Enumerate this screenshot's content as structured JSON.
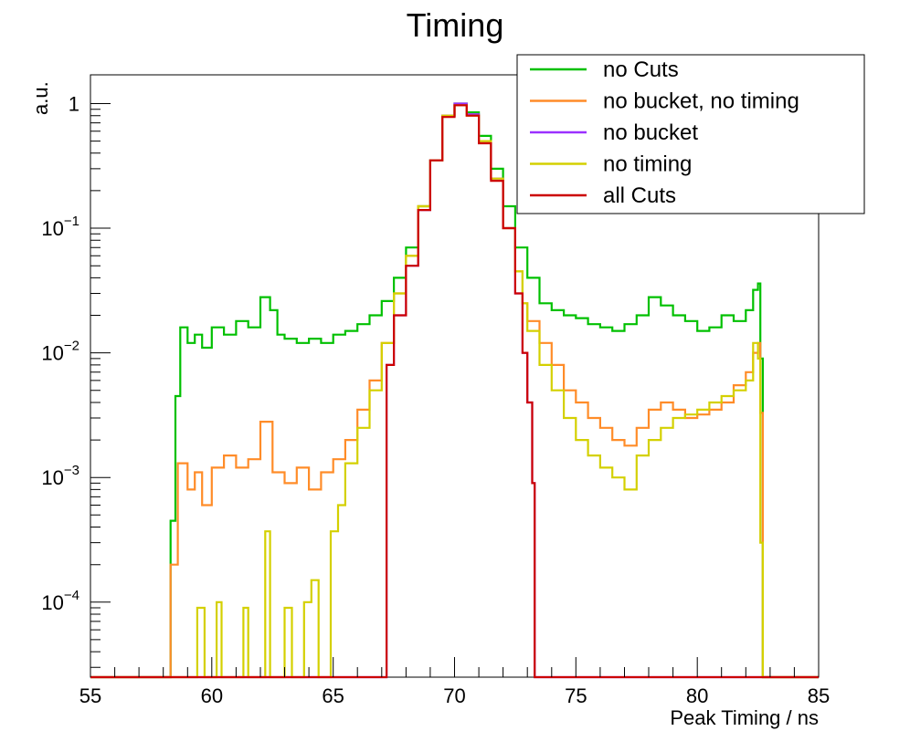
{
  "chart_data": {
    "type": "line",
    "title": "Timing",
    "xlabel": "Peak Timing / ns",
    "ylabel": "a.u.",
    "xlim": [
      55,
      85
    ],
    "ylim": [
      2.5e-05,
      1.7
    ],
    "yscale": "log",
    "xticks": [
      "55",
      "60",
      "65",
      "70",
      "75",
      "80",
      "85"
    ],
    "yticks": [
      {
        "value": 1,
        "base": "1",
        "exp": ""
      },
      {
        "value": 0.1,
        "base": "10",
        "exp": "−1"
      },
      {
        "value": 0.01,
        "base": "10",
        "exp": "−2"
      },
      {
        "value": 0.001,
        "base": "10",
        "exp": "−3"
      },
      {
        "value": 0.0001,
        "base": "10",
        "exp": "−4"
      }
    ],
    "legend_position": "top-right",
    "grid": false,
    "series": [
      {
        "name": "no Cuts",
        "color": "#00c000",
        "points": [
          [
            55,
            2.5e-05
          ],
          [
            58.3,
            2.5e-05
          ],
          [
            58.3,
            0.00045
          ],
          [
            58.5,
            0.0045
          ],
          [
            58.7,
            0.016
          ],
          [
            59.0,
            0.012
          ],
          [
            59.3,
            0.014
          ],
          [
            59.6,
            0.011
          ],
          [
            60.0,
            0.016
          ],
          [
            60.5,
            0.014
          ],
          [
            61.0,
            0.018
          ],
          [
            61.5,
            0.016
          ],
          [
            62.0,
            0.028
          ],
          [
            62.4,
            0.022
          ],
          [
            62.7,
            0.014
          ],
          [
            63.0,
            0.013
          ],
          [
            63.5,
            0.012
          ],
          [
            64.0,
            0.013
          ],
          [
            64.5,
            0.012
          ],
          [
            65.0,
            0.014
          ],
          [
            65.5,
            0.015
          ],
          [
            66.0,
            0.017
          ],
          [
            66.5,
            0.02
          ],
          [
            67.0,
            0.026
          ],
          [
            67.5,
            0.04
          ],
          [
            68.0,
            0.07
          ],
          [
            68.5,
            0.15
          ],
          [
            69.0,
            0.35
          ],
          [
            69.5,
            0.8
          ],
          [
            70.0,
            1.0
          ],
          [
            70.5,
            0.85
          ],
          [
            71.0,
            0.55
          ],
          [
            71.5,
            0.3
          ],
          [
            72.0,
            0.15
          ],
          [
            72.5,
            0.07
          ],
          [
            73.0,
            0.04
          ],
          [
            73.5,
            0.025
          ],
          [
            74.0,
            0.022
          ],
          [
            74.5,
            0.02
          ],
          [
            75.0,
            0.019
          ],
          [
            75.5,
            0.017
          ],
          [
            76.0,
            0.016
          ],
          [
            76.5,
            0.015
          ],
          [
            77.0,
            0.017
          ],
          [
            77.5,
            0.02
          ],
          [
            78.0,
            0.028
          ],
          [
            78.5,
            0.024
          ],
          [
            79.0,
            0.02
          ],
          [
            79.5,
            0.018
          ],
          [
            80.0,
            0.015
          ],
          [
            80.5,
            0.016
          ],
          [
            81.0,
            0.02
          ],
          [
            81.5,
            0.018
          ],
          [
            82.0,
            0.022
          ],
          [
            82.3,
            0.032
          ],
          [
            82.5,
            0.036
          ],
          [
            82.6,
            0.009
          ],
          [
            82.7,
            2.5e-05
          ],
          [
            85,
            2.5e-05
          ]
        ]
      },
      {
        "name": "no bucket, no timing",
        "color": "#ff8c28",
        "points": [
          [
            55,
            2.5e-05
          ],
          [
            58.2,
            2.5e-05
          ],
          [
            58.3,
            0.0002
          ],
          [
            58.6,
            0.0013
          ],
          [
            59.0,
            0.0008
          ],
          [
            59.3,
            0.0011
          ],
          [
            59.6,
            0.0006
          ],
          [
            60.0,
            0.0012
          ],
          [
            60.5,
            0.0015
          ],
          [
            61.0,
            0.0012
          ],
          [
            61.5,
            0.0014
          ],
          [
            62.0,
            0.0028
          ],
          [
            62.5,
            0.0011
          ],
          [
            63.0,
            0.0009
          ],
          [
            63.5,
            0.0012
          ],
          [
            64.0,
            0.0008
          ],
          [
            64.5,
            0.0011
          ],
          [
            65.0,
            0.0014
          ],
          [
            65.5,
            0.002
          ],
          [
            66.0,
            0.0035
          ],
          [
            66.5,
            0.006
          ],
          [
            67.0,
            0.012
          ],
          [
            67.5,
            0.03
          ],
          [
            68.0,
            0.06
          ],
          [
            68.5,
            0.15
          ],
          [
            69.0,
            0.35
          ],
          [
            69.5,
            0.8
          ],
          [
            70.0,
            0.97
          ],
          [
            70.5,
            0.8
          ],
          [
            71.0,
            0.5
          ],
          [
            71.5,
            0.25
          ],
          [
            72.0,
            0.1
          ],
          [
            72.5,
            0.045
          ],
          [
            72.8,
            0.025
          ],
          [
            73.0,
            0.018
          ],
          [
            73.5,
            0.012
          ],
          [
            74.0,
            0.008
          ],
          [
            74.5,
            0.005
          ],
          [
            75.0,
            0.004
          ],
          [
            75.5,
            0.003
          ],
          [
            76.0,
            0.0025
          ],
          [
            76.5,
            0.002
          ],
          [
            77.0,
            0.0018
          ],
          [
            77.5,
            0.0025
          ],
          [
            78.0,
            0.0035
          ],
          [
            78.5,
            0.004
          ],
          [
            79.0,
            0.0035
          ],
          [
            79.5,
            0.003
          ],
          [
            80.0,
            0.0032
          ],
          [
            80.5,
            0.0035
          ],
          [
            81.0,
            0.004
          ],
          [
            81.5,
            0.0055
          ],
          [
            82.0,
            0.007
          ],
          [
            82.3,
            0.01
          ],
          [
            82.5,
            0.012
          ],
          [
            82.6,
            0.0033
          ],
          [
            82.7,
            2.5e-05
          ],
          [
            85,
            2.5e-05
          ]
        ]
      },
      {
        "name": "no bucket",
        "color": "#9b30ff",
        "points": [
          [
            55,
            2.5e-05
          ],
          [
            67.1,
            2.5e-05
          ],
          [
            67.2,
            0.008
          ],
          [
            67.5,
            0.02
          ],
          [
            68.0,
            0.05
          ],
          [
            68.5,
            0.14
          ],
          [
            69.0,
            0.35
          ],
          [
            69.5,
            0.8
          ],
          [
            70.0,
            1.0
          ],
          [
            70.5,
            0.82
          ],
          [
            71.0,
            0.5
          ],
          [
            71.5,
            0.25
          ],
          [
            72.0,
            0.1
          ],
          [
            72.5,
            0.03
          ],
          [
            72.8,
            0.01
          ],
          [
            73.0,
            0.004
          ],
          [
            73.2,
            0.0009
          ],
          [
            73.3,
            2.5e-05
          ],
          [
            85,
            2.5e-05
          ]
        ]
      },
      {
        "name": "no timing",
        "color": "#d4d000",
        "points": [
          [
            55,
            2.5e-05
          ],
          [
            59.4,
            2.5e-05
          ],
          [
            59.4,
            9e-05
          ],
          [
            59.7,
            2.5e-05
          ],
          [
            60.2,
            0.0001
          ],
          [
            60.4,
            2.5e-05
          ],
          [
            61.3,
            9e-05
          ],
          [
            61.5,
            2.5e-05
          ],
          [
            62.2,
            0.00037
          ],
          [
            62.4,
            2.5e-05
          ],
          [
            63.0,
            9e-05
          ],
          [
            63.3,
            2.5e-05
          ],
          [
            63.8,
            0.0001
          ],
          [
            64.1,
            0.00015
          ],
          [
            64.4,
            2.5e-05
          ],
          [
            64.9,
            0.00037
          ],
          [
            65.2,
            0.0006
          ],
          [
            65.5,
            0.0013
          ],
          [
            66.0,
            0.0025
          ],
          [
            66.5,
            0.005
          ],
          [
            67.0,
            0.012
          ],
          [
            67.5,
            0.03
          ],
          [
            68.0,
            0.06
          ],
          [
            68.5,
            0.15
          ],
          [
            69.0,
            0.35
          ],
          [
            69.5,
            0.8
          ],
          [
            70.0,
            0.97
          ],
          [
            70.5,
            0.8
          ],
          [
            71.0,
            0.5
          ],
          [
            71.5,
            0.25
          ],
          [
            72.0,
            0.1
          ],
          [
            72.5,
            0.045
          ],
          [
            72.8,
            0.025
          ],
          [
            73.0,
            0.015
          ],
          [
            73.5,
            0.008
          ],
          [
            74.0,
            0.005
          ],
          [
            74.5,
            0.003
          ],
          [
            75.0,
            0.002
          ],
          [
            75.5,
            0.0015
          ],
          [
            76.0,
            0.0012
          ],
          [
            76.5,
            0.001
          ],
          [
            77.0,
            0.0008
          ],
          [
            77.5,
            0.0015
          ],
          [
            78.0,
            0.002
          ],
          [
            78.5,
            0.0025
          ],
          [
            79.0,
            0.003
          ],
          [
            79.5,
            0.0032
          ],
          [
            80.0,
            0.0035
          ],
          [
            80.5,
            0.004
          ],
          [
            81.0,
            0.0045
          ],
          [
            81.5,
            0.005
          ],
          [
            82.0,
            0.006
          ],
          [
            82.3,
            0.012
          ],
          [
            82.5,
            0.009
          ],
          [
            82.6,
            0.0003
          ],
          [
            82.7,
            2.5e-05
          ],
          [
            85,
            2.5e-05
          ]
        ]
      },
      {
        "name": "all Cuts",
        "color": "#cc0000",
        "points": [
          [
            55,
            2.5e-05
          ],
          [
            67.1,
            2.5e-05
          ],
          [
            67.2,
            0.008
          ],
          [
            67.5,
            0.02
          ],
          [
            68.0,
            0.05
          ],
          [
            68.5,
            0.14
          ],
          [
            69.0,
            0.35
          ],
          [
            69.5,
            0.78
          ],
          [
            70.0,
            0.97
          ],
          [
            70.5,
            0.8
          ],
          [
            71.0,
            0.48
          ],
          [
            71.5,
            0.24
          ],
          [
            72.0,
            0.1
          ],
          [
            72.5,
            0.03
          ],
          [
            72.8,
            0.01
          ],
          [
            73.0,
            0.004
          ],
          [
            73.2,
            0.0009
          ],
          [
            73.3,
            2.5e-05
          ],
          [
            85,
            2.5e-05
          ]
        ]
      }
    ]
  }
}
